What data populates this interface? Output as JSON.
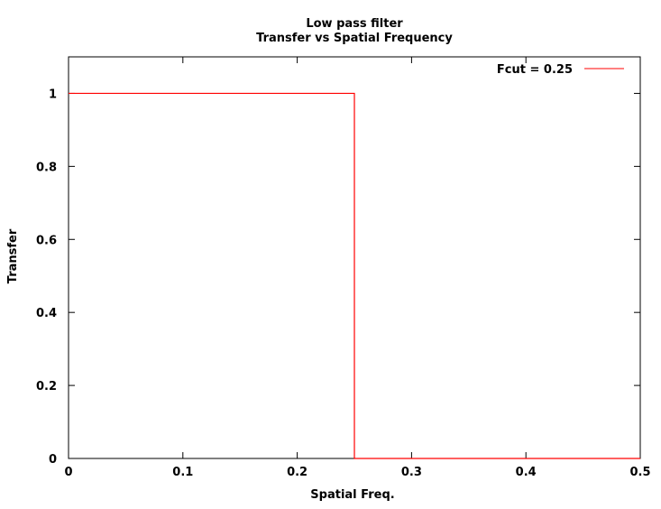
{
  "chart_data": {
    "type": "line",
    "title": "Low pass filter",
    "subtitle": "Transfer vs Spatial Frequency",
    "xlabel": "Spatial Freq.",
    "ylabel": "Transfer",
    "xlim": [
      0,
      0.5
    ],
    "ylim": [
      0,
      1.1
    ],
    "x_ticks": [
      0,
      0.1,
      0.2,
      0.3,
      0.4,
      0.5
    ],
    "x_tick_labels": [
      "0",
      "0.1",
      "0.2",
      "0.3",
      "0.4",
      "0.5"
    ],
    "y_ticks": [
      0,
      0.2,
      0.4,
      0.6,
      0.8,
      1
    ],
    "y_tick_labels": [
      "0",
      "0.2",
      "0.4",
      "0.6",
      "0.8",
      "1"
    ],
    "grid": false,
    "legend_position": "top-right",
    "series": [
      {
        "name": "Fcut = 0.25",
        "color": "#ff0000",
        "x": [
          0,
          0.25,
          0.25,
          0.5
        ],
        "y": [
          1,
          1,
          0,
          0
        ]
      }
    ]
  }
}
